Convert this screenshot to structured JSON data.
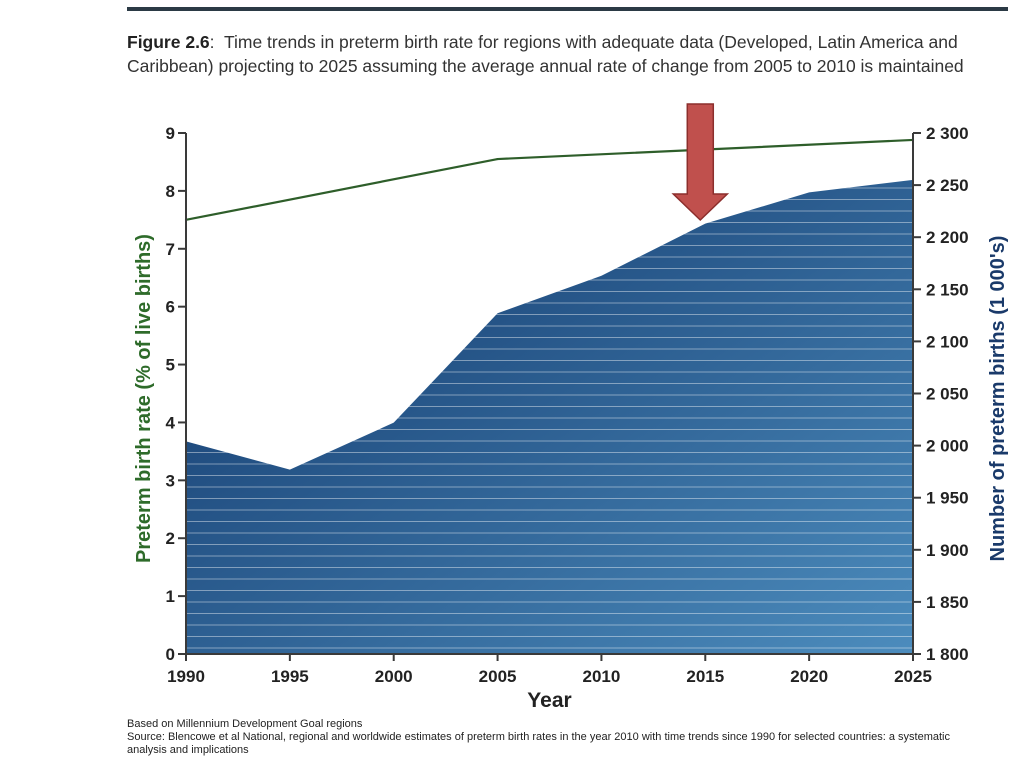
{
  "caption": {
    "label": "Figure 2.6",
    "text": "Time trends in preterm birth rate for regions with adequate data (Developed, Latin America and Caribbean) projecting to 2025 assuming the average annual rate of change from 2005 to 2010 is maintained"
  },
  "colors": {
    "rule": "#2b3a45",
    "line_series": "#2e5e2a",
    "area_dark": "#0f3468",
    "area_light": "#4c8cbd",
    "arrow_fill": "#c0504d",
    "arrow_stroke": "#8c2e2c",
    "left_axis_label": "#2e6b2a",
    "right_axis_label": "#1a3a6a"
  },
  "chart_data": {
    "type": "area",
    "x": [
      1990,
      1995,
      2000,
      2005,
      2010,
      2015,
      2020,
      2025
    ],
    "xlabel": "Year",
    "x_ticks": [
      "1990",
      "1995",
      "2000",
      "2005",
      "2010",
      "2015",
      "2020",
      "2025"
    ],
    "xlim": [
      1990,
      2025
    ],
    "left_axis": {
      "label": "Preterm birth rate (% of live births)",
      "ylim": [
        0,
        9
      ],
      "ticks": [
        "0",
        "1",
        "2",
        "3",
        "4",
        "5",
        "6",
        "7",
        "8",
        "9"
      ]
    },
    "right_axis": {
      "label": "Number of preterm births (1 000's)",
      "ylim": [
        1800,
        2300
      ],
      "ticks": [
        "1 800",
        "1 850",
        "1 900",
        "1 950",
        "2 000",
        "2 050",
        "2 100",
        "2 150",
        "2 200",
        "2 250",
        "2 300"
      ]
    },
    "series": [
      {
        "kind": "line",
        "axis": "left",
        "x": [
          1990,
          2005,
          2025
        ],
        "values": [
          7.5,
          8.55,
          8.88
        ]
      },
      {
        "kind": "area",
        "axis": "right",
        "x": [
          1990,
          1995,
          2000,
          2005,
          2010,
          2015,
          2020,
          2025
        ],
        "values": [
          2004,
          1977,
          2022,
          2127,
          2163,
          2213,
          2243,
          2255
        ]
      }
    ],
    "annotation": {
      "kind": "arrow",
      "x": 2015,
      "direction": "down"
    },
    "legend": "none",
    "grid": false
  },
  "notes": {
    "line1": "Based on Millennium Development Goal regions",
    "line2": "Source: Blencowe et al National, regional and worldwide estimates of preterm birth rates in the year 2010 with time trends since 1990 for selected countries: a systematic analysis and implications"
  }
}
